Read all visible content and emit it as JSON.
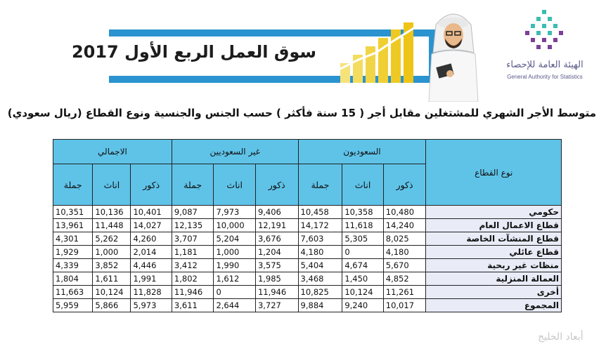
{
  "banner": {
    "title": "سوق العمل الربع الأول 2017"
  },
  "logo": {
    "arabic_name": "الهيئة العامة للإحصاء",
    "english_name": "General Authority for Statistics"
  },
  "subtitle": "متوسط الأجر الشهري للمشتغلين مقابل أجر ( 15 سنة فأكثر ) حسب الجنس والجنسية ونوع القطاع (ريال سعودي)",
  "table": {
    "sector_header": "نوع القطاع",
    "groups": [
      "السعوديون",
      "غير السعوديين",
      "الاجمالي"
    ],
    "sub_headers": [
      "ذكور",
      "اناث",
      "جملة"
    ],
    "rows": [
      {
        "sector": "حكومي",
        "values": [
          "10,480",
          "10,358",
          "10,458",
          "9,406",
          "7,973",
          "9,087",
          "10,401",
          "10,136",
          "10,351"
        ]
      },
      {
        "sector": "قطاع الاعمال العام",
        "values": [
          "14,240",
          "11,618",
          "14,172",
          "12,191",
          "10,000",
          "12,135",
          "14,027",
          "11,448",
          "13,961"
        ]
      },
      {
        "sector": "قطاع المنشآت الخاصة",
        "values": [
          "8,025",
          "5,305",
          "7,603",
          "3,676",
          "5,204",
          "3,707",
          "4,260",
          "5,262",
          "4,301"
        ]
      },
      {
        "sector": "قطاع عائلي",
        "values": [
          "4,180",
          "0",
          "4,180",
          "1,204",
          "1,000",
          "1,181",
          "2,014",
          "1,000",
          "1,929"
        ]
      },
      {
        "sector": "منظات غير ربحية",
        "values": [
          "5,670",
          "4,674",
          "5,404",
          "3,575",
          "1,990",
          "3,412",
          "4,446",
          "3,852",
          "4,339"
        ]
      },
      {
        "sector": "العمالة المنزلية",
        "values": [
          "4,852",
          "1,450",
          "3,468",
          "1,985",
          "1,612",
          "1,802",
          "1,991",
          "1,611",
          "1,804"
        ]
      },
      {
        "sector": "أخرى",
        "values": [
          "11,261",
          "10,124",
          "10,825",
          "11,946",
          "0",
          "11,946",
          "11,828",
          "10,124",
          "11,663"
        ]
      },
      {
        "sector": "المجموع",
        "values": [
          "10,017",
          "9,240",
          "9,884",
          "3,727",
          "2,644",
          "3,611",
          "5,973",
          "5,866",
          "5,959"
        ]
      }
    ]
  },
  "watermark": "أبعاد الخليج",
  "colors": {
    "header_blue": "#5fc3e8",
    "banner_blue": "#2b93cf",
    "sector_cell": "#e9ecf7",
    "bar_yellow": "#f2d233"
  }
}
